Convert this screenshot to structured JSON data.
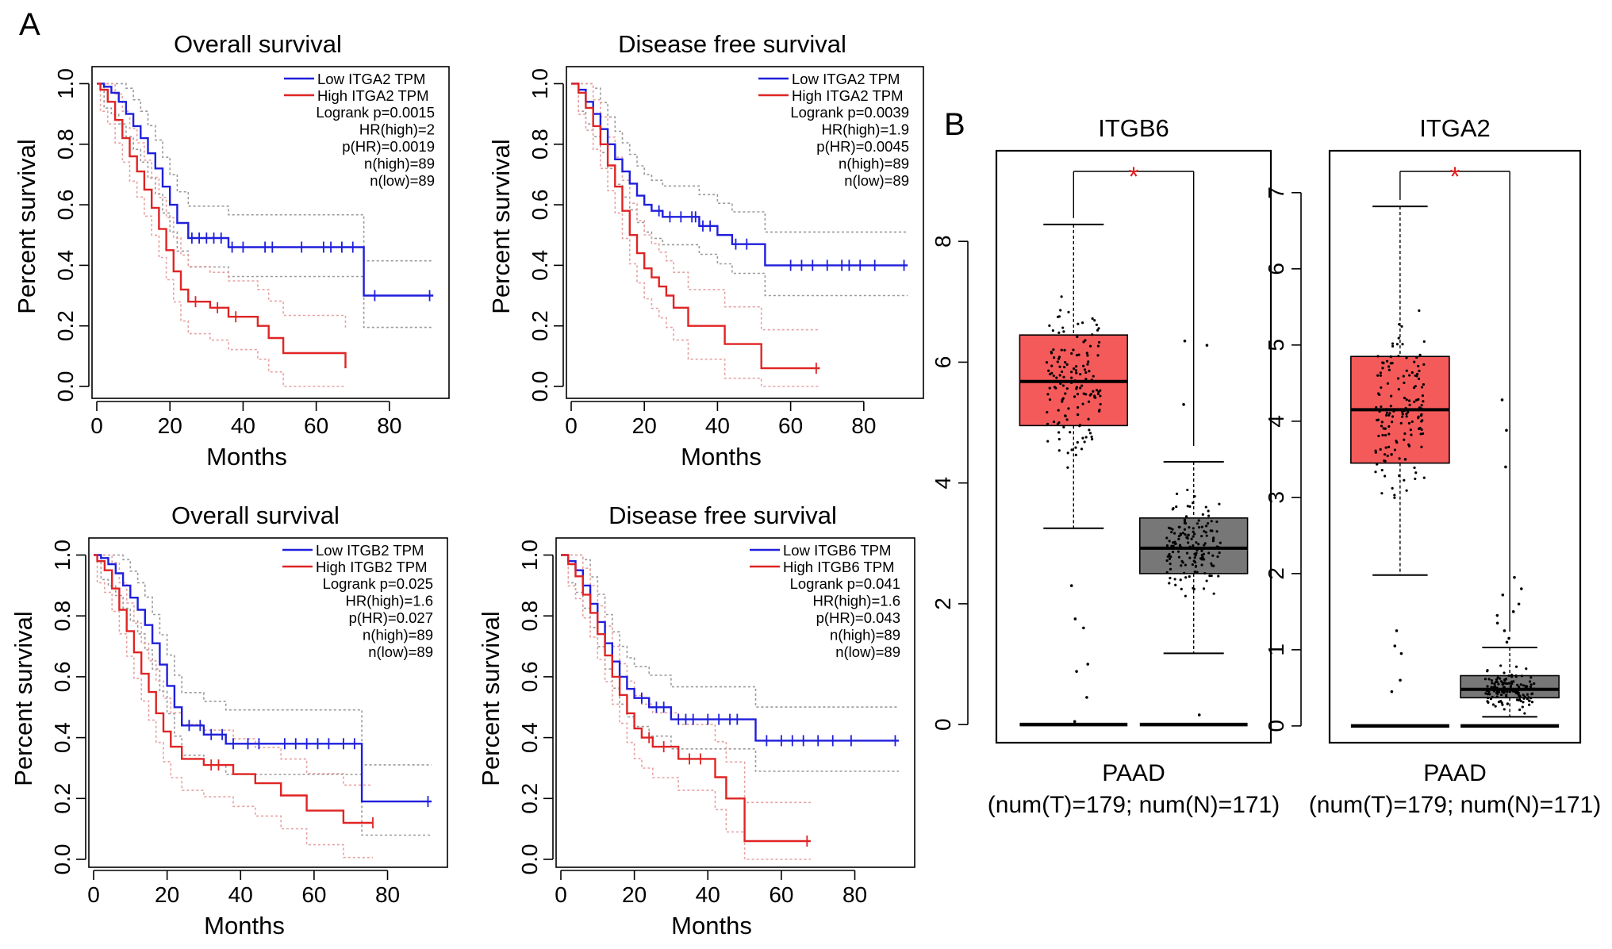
{
  "figure": {
    "panel_a_label": "A",
    "panel_b_label": "B"
  },
  "colors": {
    "low": "#1f1fdc",
    "high": "#e02424",
    "low_ci": "#9a9a9a",
    "high_ci": "#e8a0a0",
    "tumor_box": "#f55a5a",
    "normal_box": "#777777",
    "star": "#e41a1c"
  },
  "chart_data": [
    {
      "type": "line",
      "id": "km1",
      "title": "Overall survival",
      "xlabel": "Months",
      "ylabel": "Percent survival",
      "xlim": [
        0,
        95
      ],
      "ylim": [
        0,
        1.03
      ],
      "xticks": [
        0,
        20,
        40,
        60,
        80
      ],
      "xtick_labels": [
        "0",
        "20",
        "40",
        "60",
        "80"
      ],
      "yticks": [
        0,
        0.2,
        0.4,
        0.6,
        0.8,
        1.0
      ],
      "ytick_labels": [
        "0.0",
        "0.2",
        "0.4",
        "0.6",
        "0.8",
        "1.0"
      ],
      "legend": [
        "Low ITGA2 TPM",
        "High ITGA2 TPM"
      ],
      "stats": [
        "Logrank p=0.0015",
        "HR(high)=2",
        "p(HR)=0.0019",
        "n(high)=89",
        "n(low)=89"
      ],
      "series": [
        {
          "name": "Low ITGA2 TPM",
          "group": "low",
          "x": [
            0,
            2,
            4,
            6,
            8,
            10,
            12,
            14,
            16,
            18,
            20,
            22,
            25,
            36,
            73,
            73,
            92
          ],
          "y": [
            1.0,
            0.99,
            0.97,
            0.94,
            0.9,
            0.86,
            0.82,
            0.77,
            0.72,
            0.66,
            0.6,
            0.54,
            0.49,
            0.46,
            0.46,
            0.3,
            0.3
          ],
          "censor_x": [
            26,
            28,
            30,
            32,
            34,
            37,
            40,
            46,
            48,
            56,
            62,
            64,
            67,
            70,
            76,
            91
          ]
        },
        {
          "name": "High ITGA2 TPM",
          "group": "high",
          "x": [
            0,
            1,
            3,
            5,
            7,
            9,
            11,
            13,
            15,
            17,
            19,
            21,
            23,
            25,
            31,
            36,
            44,
            47,
            51,
            68,
            68
          ],
          "y": [
            1.0,
            0.98,
            0.94,
            0.88,
            0.82,
            0.76,
            0.71,
            0.65,
            0.59,
            0.52,
            0.45,
            0.38,
            0.32,
            0.28,
            0.26,
            0.23,
            0.2,
            0.16,
            0.11,
            0.11,
            0.06
          ],
          "censor_x": [
            27,
            33,
            38
          ]
        }
      ]
    },
    {
      "type": "line",
      "id": "km2",
      "title": "Disease free survival",
      "xlabel": "Months",
      "ylabel": "Percent survival",
      "xlim": [
        0,
        95
      ],
      "ylim": [
        0,
        1.03
      ],
      "xticks": [
        0,
        20,
        40,
        60,
        80
      ],
      "xtick_labels": [
        "0",
        "20",
        "40",
        "60",
        "80"
      ],
      "yticks": [
        0,
        0.2,
        0.4,
        0.6,
        0.8,
        1.0
      ],
      "ytick_labels": [
        "0.0",
        "0.2",
        "0.4",
        "0.6",
        "0.8",
        "1.0"
      ],
      "legend": [
        "Low ITGA2 TPM",
        "High ITGA2 TPM"
      ],
      "stats": [
        "Logrank p=0.0039",
        "HR(high)=1.9",
        "p(HR)=0.0045",
        "n(high)=89",
        "n(low)=89"
      ],
      "series": [
        {
          "name": "Low ITGA2 TPM",
          "group": "low",
          "x": [
            0,
            2,
            4,
            6,
            8,
            10,
            12,
            14,
            16,
            18,
            20,
            22,
            25,
            35,
            40,
            44,
            53,
            53,
            92
          ],
          "y": [
            1.0,
            0.98,
            0.94,
            0.9,
            0.85,
            0.8,
            0.75,
            0.71,
            0.67,
            0.63,
            0.6,
            0.58,
            0.56,
            0.53,
            0.5,
            0.47,
            0.44,
            0.4,
            0.4
          ],
          "censor_x": [
            24,
            27,
            30,
            33,
            34,
            36,
            38,
            45,
            48,
            60,
            63,
            66,
            70,
            74,
            76,
            79,
            83,
            91
          ]
        },
        {
          "name": "High ITGA2 TPM",
          "group": "high",
          "x": [
            0,
            2,
            4,
            6,
            8,
            10,
            12,
            14,
            16,
            18,
            20,
            22,
            24,
            26,
            28,
            32,
            42,
            52,
            52,
            68
          ],
          "y": [
            1.0,
            0.97,
            0.92,
            0.86,
            0.8,
            0.73,
            0.66,
            0.58,
            0.5,
            0.44,
            0.39,
            0.36,
            0.33,
            0.3,
            0.26,
            0.2,
            0.14,
            0.14,
            0.06,
            0.06
          ],
          "censor_x": [
            67
          ]
        }
      ]
    },
    {
      "type": "line",
      "id": "km3",
      "title": "Overall survival",
      "xlabel": "Months",
      "ylabel": "Percent survival",
      "xlim": [
        0,
        95
      ],
      "ylim": [
        0,
        1.03
      ],
      "xticks": [
        0,
        20,
        40,
        60,
        80
      ],
      "xtick_labels": [
        "0",
        "20",
        "40",
        "60",
        "80"
      ],
      "yticks": [
        0,
        0.2,
        0.4,
        0.6,
        0.8,
        1.0
      ],
      "ytick_labels": [
        "0.0",
        "0.2",
        "0.4",
        "0.6",
        "0.8",
        "1.0"
      ],
      "legend": [
        "Low ITGB2 TPM",
        "High ITGB2 TPM"
      ],
      "stats": [
        "Logrank p=0.025",
        "HR(high)=1.6",
        "p(HR)=0.027",
        "n(high)=89",
        "n(low)=89"
      ],
      "series": [
        {
          "name": "Low ITGB2 TPM",
          "group": "low",
          "x": [
            0,
            2,
            4,
            6,
            8,
            10,
            12,
            14,
            16,
            18,
            20,
            22,
            24,
            30,
            36,
            73,
            73,
            92
          ],
          "y": [
            1.0,
            0.99,
            0.97,
            0.94,
            0.9,
            0.86,
            0.82,
            0.77,
            0.71,
            0.64,
            0.57,
            0.5,
            0.44,
            0.41,
            0.38,
            0.38,
            0.19,
            0.19
          ],
          "censor_x": [
            26,
            29,
            32,
            35,
            38,
            42,
            45,
            52,
            55,
            58,
            61,
            64,
            68,
            71,
            91
          ]
        },
        {
          "name": "High ITGB2 TPM",
          "group": "high",
          "x": [
            0,
            1,
            3,
            5,
            7,
            9,
            11,
            13,
            15,
            17,
            19,
            21,
            24,
            30,
            38,
            44,
            51,
            58,
            68,
            76
          ],
          "y": [
            1.0,
            0.98,
            0.95,
            0.89,
            0.82,
            0.75,
            0.68,
            0.61,
            0.55,
            0.48,
            0.42,
            0.37,
            0.33,
            0.31,
            0.28,
            0.25,
            0.21,
            0.16,
            0.12,
            0.12
          ],
          "censor_x": [
            32,
            34,
            76
          ]
        }
      ]
    },
    {
      "type": "line",
      "id": "km4",
      "title": "Disease free survival",
      "xlabel": "Months",
      "ylabel": "Percent survival",
      "xlim": [
        0,
        95
      ],
      "ylim": [
        0,
        1.03
      ],
      "xticks": [
        0,
        20,
        40,
        60,
        80
      ],
      "xtick_labels": [
        "0",
        "20",
        "40",
        "60",
        "80"
      ],
      "yticks": [
        0,
        0.2,
        0.4,
        0.6,
        0.8,
        1.0
      ],
      "ytick_labels": [
        "0.0",
        "0.2",
        "0.4",
        "0.6",
        "0.8",
        "1.0"
      ],
      "legend": [
        "Low ITGB6 TPM",
        "High ITGB6 TPM"
      ],
      "stats": [
        "Logrank p=0.041",
        "HR(high)=1.6",
        "p(HR)=0.043",
        "n(high)=89",
        "n(low)=89"
      ],
      "series": [
        {
          "name": "Low ITGB6 TPM",
          "group": "low",
          "x": [
            0,
            2,
            4,
            6,
            8,
            10,
            12,
            14,
            16,
            18,
            20,
            24,
            30,
            53,
            53,
            92
          ],
          "y": [
            1.0,
            0.98,
            0.95,
            0.9,
            0.84,
            0.78,
            0.71,
            0.65,
            0.6,
            0.56,
            0.53,
            0.5,
            0.46,
            0.46,
            0.39,
            0.39
          ],
          "censor_x": [
            22,
            26,
            28,
            32,
            34,
            36,
            40,
            43,
            46,
            48,
            56,
            60,
            63,
            66,
            70,
            74,
            79,
            91
          ]
        },
        {
          "name": "High ITGB6 TPM",
          "group": "high",
          "x": [
            0,
            2,
            4,
            6,
            8,
            10,
            12,
            14,
            16,
            18,
            20,
            22,
            25,
            32,
            42,
            45,
            50,
            50,
            68
          ],
          "y": [
            1.0,
            0.97,
            0.93,
            0.87,
            0.81,
            0.74,
            0.67,
            0.6,
            0.54,
            0.48,
            0.43,
            0.4,
            0.37,
            0.33,
            0.27,
            0.2,
            0.13,
            0.06,
            0.06
          ],
          "censor_x": [
            24,
            28,
            35,
            38,
            67
          ]
        }
      ]
    },
    {
      "type": "box",
      "id": "box1",
      "title": "ITGB6",
      "xlabel": "PAAD",
      "sublabel": "(num(T)=179; num(N)=171)",
      "ylim": [
        -0.3,
        9.5
      ],
      "yticks": [
        0,
        2,
        4,
        6,
        8
      ],
      "ytick_labels": [
        "0",
        "2",
        "4",
        "6",
        "8"
      ],
      "significance": "*",
      "boxes": [
        {
          "group": "Tumor",
          "n": 179,
          "q1": 4.95,
          "median": 5.68,
          "q3": 6.45,
          "whisker_low": 3.25,
          "whisker_high": 8.28,
          "zeros": 32,
          "low_outliers": [
            2.3,
            1.75,
            1.6,
            1.0,
            0.88,
            0.45,
            0.05
          ]
        },
        {
          "group": "Normal",
          "n": 171,
          "q1": 2.5,
          "median": 2.92,
          "q3": 3.42,
          "whisker_low": 1.18,
          "whisker_high": 4.35,
          "zeros": 20,
          "high_outliers": [
            6.35,
            6.28,
            5.3
          ],
          "low_outliers": [
            0.16
          ]
        }
      ]
    },
    {
      "type": "box",
      "id": "box2",
      "title": "ITGA2",
      "xlabel": "PAAD",
      "sublabel": "(num(T)=179; num(N)=171)",
      "ylim": [
        -0.22,
        7.55
      ],
      "yticks": [
        0,
        1,
        2,
        3,
        4,
        5,
        6,
        7
      ],
      "ytick_labels": [
        "0",
        "1",
        "2",
        "3",
        "4",
        "5",
        "6",
        "7"
      ],
      "significance": "*",
      "boxes": [
        {
          "group": "Tumor",
          "n": 179,
          "q1": 3.45,
          "median": 4.15,
          "q3": 4.85,
          "whisker_low": 1.98,
          "whisker_high": 6.82,
          "zeros": 30,
          "low_outliers": [
            1.25,
            1.05,
            0.95,
            0.6,
            0.45
          ]
        },
        {
          "group": "Normal",
          "n": 171,
          "q1": 0.37,
          "median": 0.48,
          "q3": 0.66,
          "whisker_low": 0.12,
          "whisker_high": 1.03,
          "zeros": 30,
          "high_outliers": [
            4.28,
            3.88,
            3.4,
            1.95,
            1.8,
            1.72,
            1.6,
            1.5,
            1.45,
            1.35,
            1.25,
            1.15,
            1.1
          ]
        }
      ]
    }
  ]
}
